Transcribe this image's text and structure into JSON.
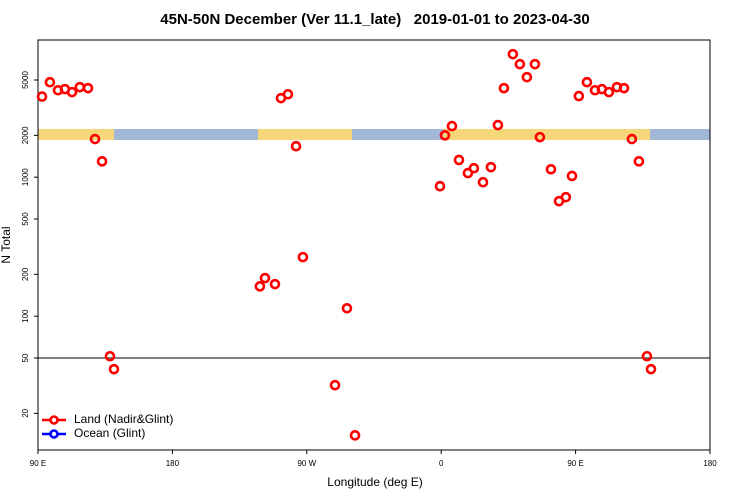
{
  "chart_data": {
    "type": "scatter",
    "title": "45N-50N December (Ver 11.1_late)   2019-01-01 to 2023-04-30",
    "xlabel": "Longitude (deg E)",
    "ylabel": "N Total",
    "xlim": [
      90,
      540
    ],
    "xticks": [
      {
        "value": 90,
        "label": "90 E"
      },
      180,
      {
        "value": 270,
        "label": "90 W"
      },
      {
        "value": 360,
        "label": "0"
      },
      {
        "value": 450,
        "label": "90 E"
      },
      {
        "value": 540,
        "label": "180"
      }
    ],
    "ylim": [
      10.9,
      9700
    ],
    "log_y": true,
    "yticks": [
      20,
      50,
      100,
      200,
      500,
      1000,
      2000,
      5000
    ],
    "hline": 50,
    "legend": "bottom-left",
    "series": [
      {
        "name": "Land (Nadir&Glint)",
        "color": "#ff0000",
        "x": [
          92.7,
          98,
          103.4,
          108,
          112.8,
          118,
          123.5,
          128.2,
          132.9,
          138.2,
          140.9,
          238.6,
          242,
          248.7,
          252.7,
          257.4,
          262.8,
          267.4,
          288.9,
          296.9,
          302.3,
          359.2,
          362.5,
          367.2,
          371.9,
          377.9,
          381.9,
          388,
          393.3,
          398,
          402,
          408,
          412.7,
          417.4,
          422.8,
          426.1,
          433.5,
          438.9,
          443.5,
          447.6,
          452.2,
          457.6,
          463,
          467.6,
          472.3,
          477.7,
          482.4,
          487.7,
          492.4,
          497.8,
          500.5
        ],
        "y": [
          3800,
          4820,
          4220,
          4300,
          4090,
          4440,
          4370,
          1880,
          1300,
          51.5,
          41.6,
          164,
          188,
          170,
          3700,
          3950,
          1670,
          266,
          31.9,
          114,
          13.9,
          861,
          2000,
          2330,
          1330,
          1070,
          1160,
          920,
          1180,
          2370,
          4370,
          7670,
          6500,
          5240,
          6500,
          1940,
          1140,
          672,
          718,
          1020,
          3830,
          4820,
          4220,
          4300,
          4090,
          4440,
          4370,
          1880,
          1300,
          51.5,
          41.6
        ]
      },
      {
        "name": "Ocean (Glint)",
        "color": "#0000ff",
        "x": [],
        "y": []
      }
    ]
  }
}
